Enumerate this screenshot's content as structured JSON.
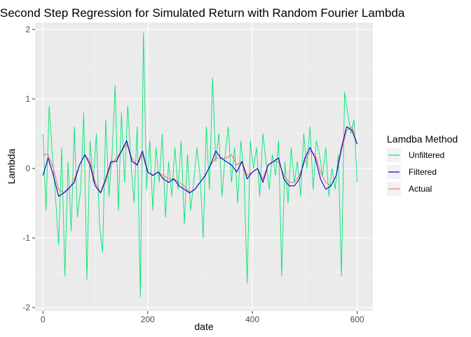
{
  "chart_data": {
    "type": "line",
    "title": "Second Step Regression for Simulated Return with Random Fourier Lambda",
    "xlabel": "date",
    "ylabel": "Lambda",
    "xlim": [
      -15,
      630
    ],
    "ylim": [
      -2.05,
      2.1
    ],
    "x_ticks": [
      0,
      200,
      400,
      600
    ],
    "y_ticks": [
      -2,
      -1,
      0,
      1,
      2
    ],
    "x_tick_labels": [
      "0",
      "200",
      "400",
      "600"
    ],
    "y_tick_labels": [
      "-2",
      "-1",
      "0",
      "1",
      "2"
    ],
    "grid": true,
    "panel_background": "#ebebeb",
    "legend": {
      "title": "Lamdba Method",
      "position": "right",
      "entries": [
        {
          "label": "Unfiltered",
          "color": "#00e676"
        },
        {
          "label": "Filtered",
          "color": "#0000cc"
        },
        {
          "label": "Actual",
          "color": "#f8766d"
        }
      ]
    },
    "series": [
      {
        "name": "Filtered",
        "color": "#0000cc",
        "x": [
          0,
          10,
          20,
          30,
          40,
          50,
          60,
          70,
          80,
          90,
          100,
          110,
          120,
          130,
          140,
          150,
          160,
          170,
          180,
          190,
          200,
          210,
          220,
          230,
          240,
          250,
          260,
          270,
          280,
          290,
          300,
          310,
          320,
          330,
          340,
          350,
          360,
          370,
          380,
          390,
          400,
          410,
          420,
          430,
          440,
          450,
          460,
          470,
          480,
          490,
          500,
          510,
          520,
          530,
          540,
          550,
          560,
          570,
          580,
          590,
          600
        ],
        "y": [
          -0.1,
          0.15,
          -0.1,
          -0.4,
          -0.35,
          -0.28,
          -0.2,
          0.05,
          0.2,
          0.05,
          -0.25,
          -0.35,
          -0.15,
          0.1,
          0.1,
          0.25,
          0.4,
          0.1,
          0.05,
          0.25,
          -0.05,
          -0.1,
          -0.05,
          -0.15,
          -0.2,
          -0.15,
          -0.25,
          -0.3,
          -0.35,
          -0.3,
          -0.2,
          -0.1,
          0.05,
          0.25,
          0.15,
          0.1,
          0.05,
          -0.05,
          0.1,
          -0.15,
          -0.05,
          0.0,
          -0.2,
          0.05,
          0.1,
          0.15,
          -0.15,
          -0.25,
          -0.25,
          -0.15,
          0.15,
          0.3,
          0.15,
          -0.15,
          -0.3,
          -0.25,
          -0.1,
          0.3,
          0.6,
          0.55,
          0.35
        ]
      },
      {
        "name": "Actual",
        "color": "#f8766d",
        "x": [
          0,
          10,
          20,
          30,
          40,
          50,
          60,
          70,
          80,
          90,
          100,
          110,
          120,
          130,
          140,
          150,
          160,
          170,
          180,
          190,
          200,
          210,
          220,
          230,
          240,
          250,
          260,
          270,
          280,
          290,
          300,
          310,
          320,
          330,
          340,
          350,
          360,
          370,
          380,
          390,
          400,
          410,
          420,
          430,
          440,
          450,
          460,
          470,
          480,
          490,
          500,
          510,
          520,
          530,
          540,
          550,
          560,
          570,
          580,
          590,
          600
        ],
        "y": [
          0.2,
          0.2,
          0.0,
          -0.3,
          -0.35,
          -0.3,
          -0.15,
          0.05,
          0.2,
          0.1,
          -0.2,
          -0.35,
          -0.2,
          0.05,
          0.15,
          0.25,
          0.35,
          0.15,
          0.05,
          0.2,
          -0.05,
          -0.1,
          -0.05,
          -0.1,
          -0.15,
          -0.15,
          -0.2,
          -0.25,
          -0.35,
          -0.3,
          -0.2,
          -0.1,
          0.05,
          0.15,
          0.15,
          0.15,
          0.2,
          0.05,
          0.1,
          -0.1,
          -0.05,
          0.0,
          -0.15,
          0.05,
          0.1,
          0.1,
          -0.1,
          -0.2,
          -0.2,
          -0.1,
          0.1,
          0.25,
          0.2,
          -0.05,
          -0.2,
          -0.25,
          -0.1,
          0.25,
          0.55,
          0.6,
          0.35
        ]
      },
      {
        "name": "Unfiltered",
        "color": "#00e676",
        "x": [
          0,
          6,
          12,
          18,
          24,
          30,
          36,
          42,
          48,
          54,
          60,
          66,
          72,
          78,
          84,
          90,
          96,
          102,
          108,
          114,
          120,
          126,
          132,
          138,
          144,
          150,
          156,
          162,
          168,
          174,
          180,
          186,
          192,
          198,
          204,
          210,
          216,
          222,
          228,
          234,
          240,
          246,
          252,
          258,
          264,
          270,
          276,
          282,
          288,
          294,
          300,
          306,
          312,
          318,
          324,
          330,
          336,
          342,
          348,
          354,
          360,
          366,
          372,
          378,
          384,
          390,
          396,
          402,
          408,
          414,
          420,
          426,
          432,
          438,
          444,
          450,
          456,
          462,
          468,
          474,
          480,
          486,
          492,
          498,
          504,
          510,
          516,
          522,
          528,
          534,
          540,
          546,
          552,
          558,
          564,
          570,
          576,
          582,
          588,
          594,
          600
        ],
        "y": [
          0.5,
          -0.6,
          0.9,
          0.2,
          -0.4,
          -1.1,
          0.3,
          -1.55,
          0.1,
          -0.9,
          0.6,
          -0.7,
          -0.3,
          0.8,
          -1.6,
          0.4,
          -0.2,
          0.5,
          -0.8,
          -1.2,
          0.7,
          -0.4,
          0.2,
          1.2,
          -0.6,
          0.8,
          -0.2,
          0.9,
          0.1,
          -0.5,
          0.6,
          -1.85,
          1.95,
          -0.3,
          0.4,
          -0.6,
          0.3,
          -0.2,
          0.5,
          -0.7,
          0.1,
          -0.4,
          0.3,
          -0.3,
          0.4,
          -0.8,
          0.2,
          -0.6,
          -0.2,
          0.3,
          -0.1,
          -1.0,
          0.6,
          -0.3,
          1.3,
          0.1,
          0.5,
          -0.4,
          0.2,
          0.6,
          -0.2,
          0.3,
          -0.5,
          0.4,
          -0.1,
          -1.65,
          0.4,
          0.0,
          0.3,
          -0.4,
          0.5,
          0.1,
          -0.3,
          0.2,
          -0.1,
          0.4,
          -1.55,
          0.1,
          -0.5,
          0.3,
          -0.2,
          0.1,
          -0.4,
          0.5,
          0.0,
          0.6,
          -0.3,
          0.4,
          0.2,
          -0.1,
          0.3,
          -0.4,
          0.0,
          -0.3,
          0.2,
          -1.55,
          1.1,
          0.8,
          0.5,
          0.7,
          -0.2
        ]
      }
    ]
  }
}
